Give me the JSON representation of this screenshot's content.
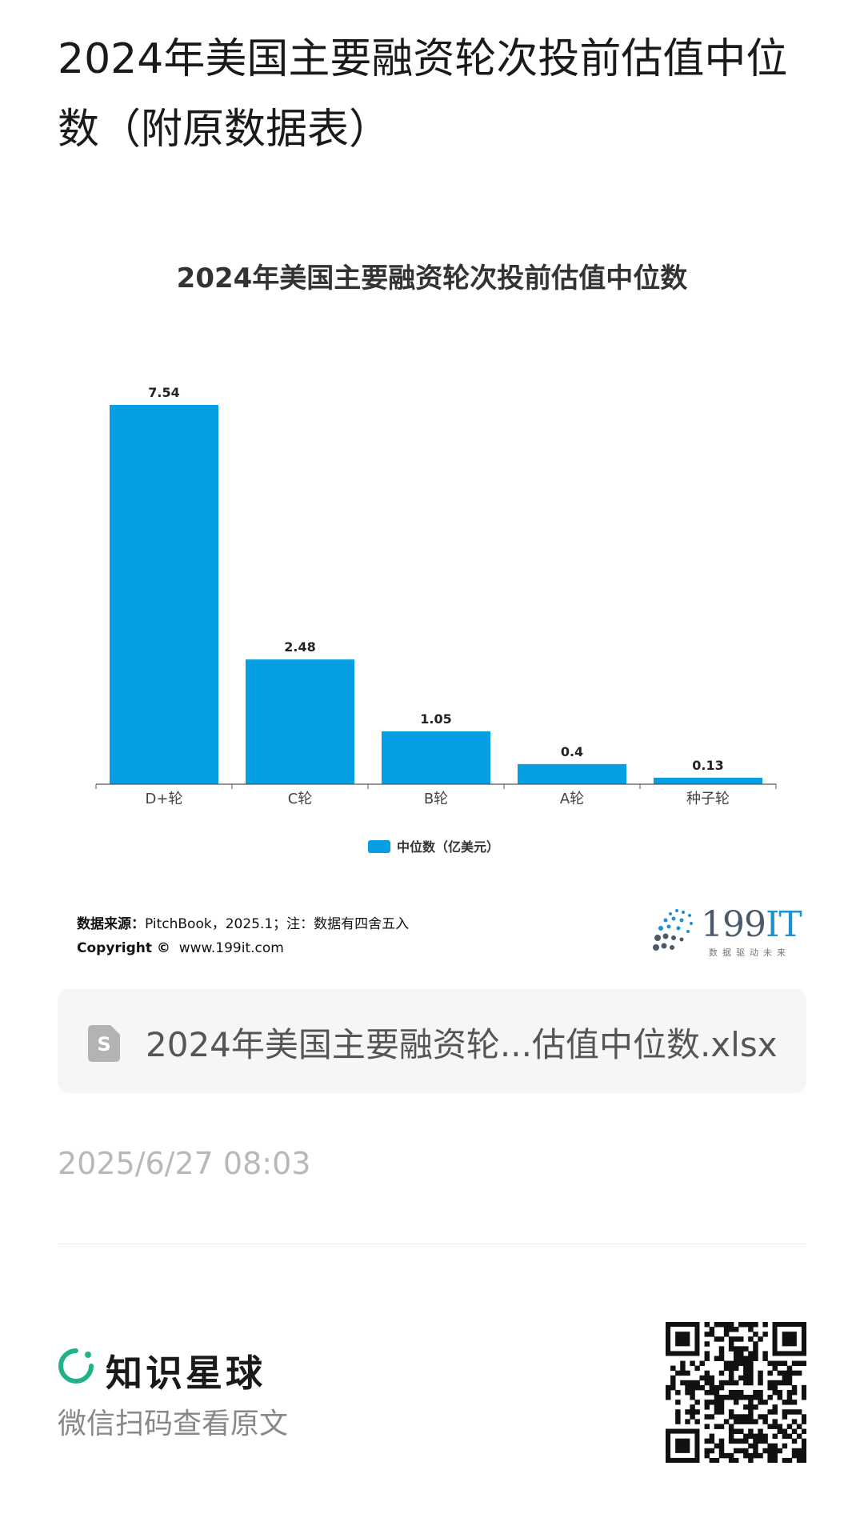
{
  "page_title": "2024年美国主要融资轮次投前估值中位数（附原数据表）",
  "chart_data": {
    "type": "bar",
    "title": "2024年美国主要融资轮次投前估值中位数",
    "categories": [
      "D+轮",
      "C轮",
      "B轮",
      "A轮",
      "种子轮"
    ],
    "series": [
      {
        "name": "中位数（亿美元）",
        "values": [
          7.54,
          2.48,
          1.05,
          0.4,
          0.13
        ]
      }
    ],
    "data_labels": [
      "7.54",
      "2.48",
      "1.05",
      "0.4",
      "0.13"
    ],
    "ylim": [
      0,
      7.54
    ],
    "grid": false,
    "legend_position": "bottom",
    "bar_color": "#069FE3"
  },
  "source": {
    "label": "数据来源：",
    "text": "PitchBook，2025.1；注：数据有四舍五入",
    "copyright_label": "Copyright ©",
    "copyright_site": "www.199it.com"
  },
  "logo": {
    "main": "199",
    "accent": "IT",
    "sub": "数据驱动未来"
  },
  "file": {
    "icon": "spreadsheet-icon",
    "icon_letter": "S",
    "name": "2024年美国主要融资轮...估值中位数.xlsx"
  },
  "timestamp": "2025/6/27 08:03",
  "footer": {
    "brand_name": "知识星球",
    "scan_text": "微信扫码查看原文",
    "brand_color": "#20B38A"
  }
}
